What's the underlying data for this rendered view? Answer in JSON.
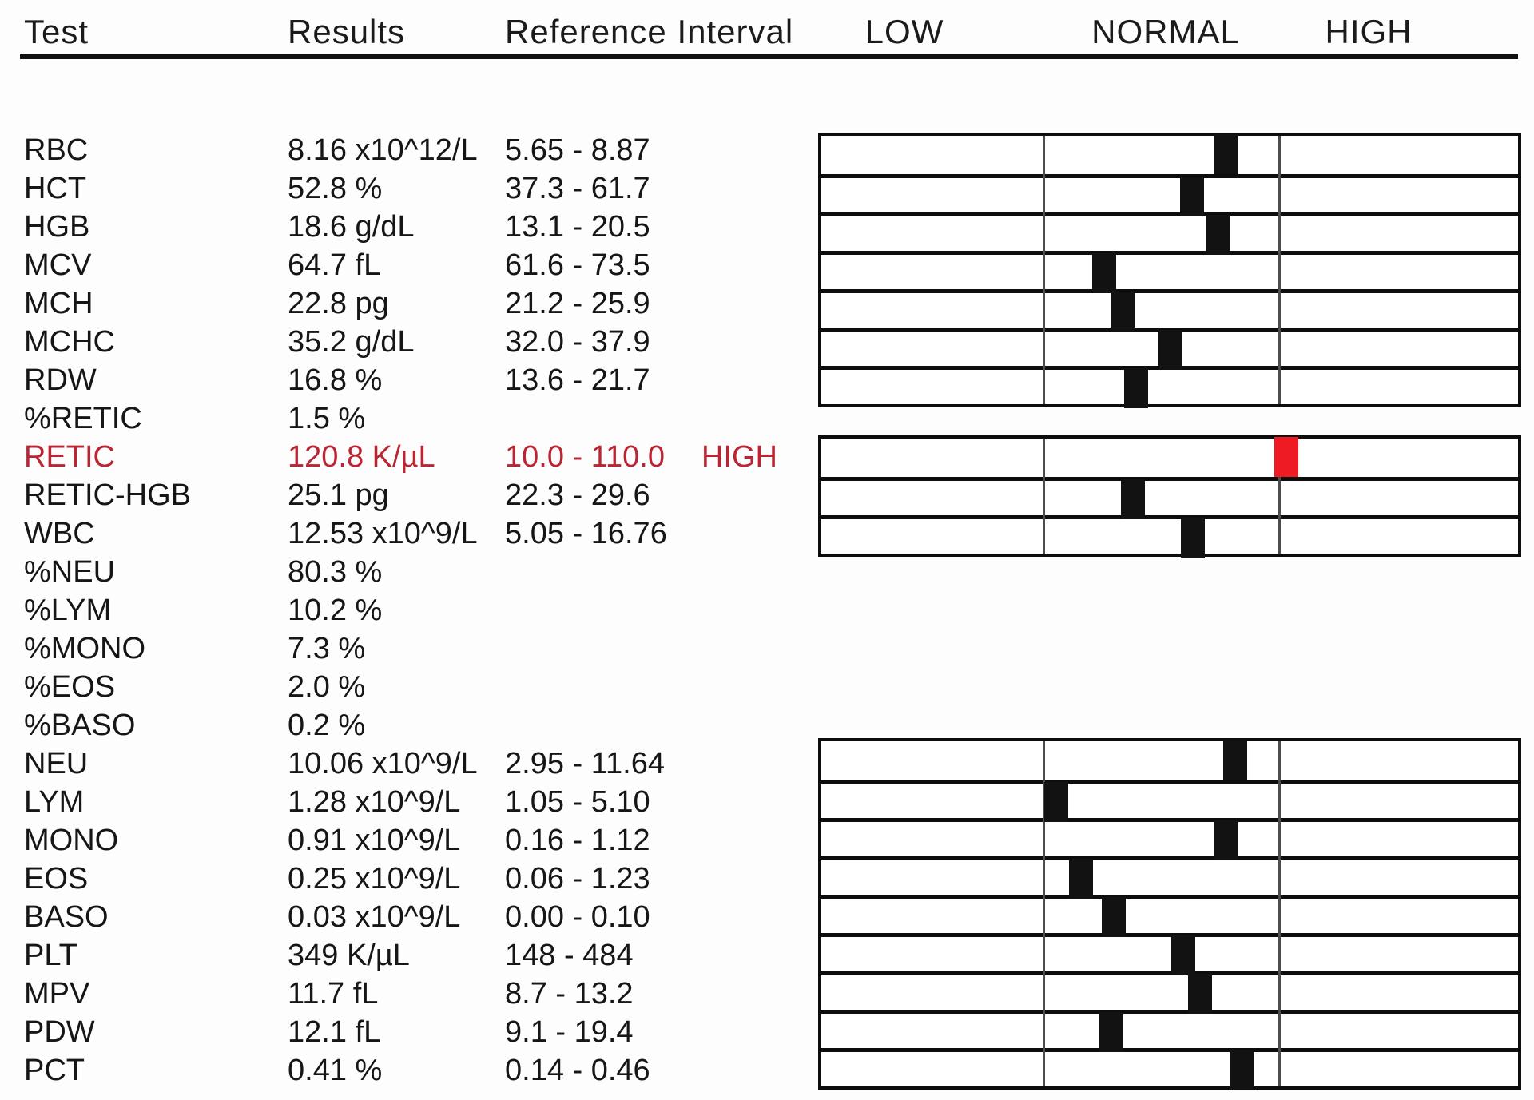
{
  "header": {
    "test": "Test",
    "results": "Results",
    "reference": "Reference Interval",
    "low": "LOW",
    "normal": "NORMAL",
    "high": "HIGH"
  },
  "colors": {
    "text": "#161616",
    "abnormal_text": "#bb2433",
    "marker_normal": "#121212",
    "marker_abnormal": "#ee1b23",
    "box_border": "#0d0d0d",
    "zone_divider": "#4d4d4d"
  },
  "rows": [
    {
      "test": "RBC",
      "result": "8.16 x10^12/L",
      "ref_interval": "5.65 - 8.87",
      "flag": "",
      "abnormal": false,
      "value": 8.16,
      "range": {
        "low": 5.65,
        "high": 8.87
      },
      "group": 1
    },
    {
      "test": "HCT",
      "result": "52.8 %",
      "ref_interval": "37.3 - 61.7",
      "flag": "",
      "abnormal": false,
      "value": 52.8,
      "range": {
        "low": 37.3,
        "high": 61.7
      },
      "group": 1
    },
    {
      "test": "HGB",
      "result": "18.6 g/dL",
      "ref_interval": "13.1 - 20.5",
      "flag": "",
      "abnormal": false,
      "value": 18.6,
      "range": {
        "low": 13.1,
        "high": 20.5
      },
      "group": 1
    },
    {
      "test": "MCV",
      "result": "64.7 fL",
      "ref_interval": "61.6 - 73.5",
      "flag": "",
      "abnormal": false,
      "value": 64.7,
      "range": {
        "low": 61.6,
        "high": 73.5
      },
      "group": 1
    },
    {
      "test": "MCH",
      "result": "22.8 pg",
      "ref_interval": "21.2 - 25.9",
      "flag": "",
      "abnormal": false,
      "value": 22.8,
      "range": {
        "low": 21.2,
        "high": 25.9
      },
      "group": 1
    },
    {
      "test": "MCHC",
      "result": "35.2 g/dL",
      "ref_interval": "32.0 - 37.9",
      "flag": "",
      "abnormal": false,
      "value": 35.2,
      "range": {
        "low": 32.0,
        "high": 37.9
      },
      "group": 1
    },
    {
      "test": "RDW",
      "result": "16.8 %",
      "ref_interval": "13.6 - 21.7",
      "flag": "",
      "abnormal": false,
      "value": 16.8,
      "range": {
        "low": 13.6,
        "high": 21.7
      },
      "group": 1
    },
    {
      "test": "%RETIC",
      "result": "1.5 %",
      "ref_interval": "",
      "flag": "",
      "abnormal": false,
      "value": 1.5,
      "range": null,
      "group": null
    },
    {
      "test": "RETIC",
      "result": "120.8 K/µL",
      "ref_interval": "10.0 - 110.0",
      "flag": "HIGH",
      "abnormal": true,
      "value": 120.8,
      "range": {
        "low": 10.0,
        "high": 110.0
      },
      "group": 2
    },
    {
      "test": "RETIC-HGB",
      "result": "25.1 pg",
      "ref_interval": "22.3 - 29.6",
      "flag": "",
      "abnormal": false,
      "value": 25.1,
      "range": {
        "low": 22.3,
        "high": 29.6
      },
      "group": 2
    },
    {
      "test": "WBC",
      "result": "12.53 x10^9/L",
      "ref_interval": "5.05 - 16.76",
      "flag": "",
      "abnormal": false,
      "value": 12.53,
      "range": {
        "low": 5.05,
        "high": 16.76
      },
      "group": 2
    },
    {
      "test": "%NEU",
      "result": "80.3 %",
      "ref_interval": "",
      "flag": "",
      "abnormal": false,
      "value": 80.3,
      "range": null,
      "group": null
    },
    {
      "test": "%LYM",
      "result": "10.2 %",
      "ref_interval": "",
      "flag": "",
      "abnormal": false,
      "value": 10.2,
      "range": null,
      "group": null
    },
    {
      "test": "%MONO",
      "result": "7.3 %",
      "ref_interval": "",
      "flag": "",
      "abnormal": false,
      "value": 7.3,
      "range": null,
      "group": null
    },
    {
      "test": "%EOS",
      "result": "2.0 %",
      "ref_interval": "",
      "flag": "",
      "abnormal": false,
      "value": 2.0,
      "range": null,
      "group": null
    },
    {
      "test": "%BASO",
      "result": "0.2 %",
      "ref_interval": "",
      "flag": "",
      "abnormal": false,
      "value": 0.2,
      "range": null,
      "group": null
    },
    {
      "test": "NEU",
      "result": "10.06 x10^9/L",
      "ref_interval": "2.95 - 11.64",
      "flag": "",
      "abnormal": false,
      "value": 10.06,
      "range": {
        "low": 2.95,
        "high": 11.64
      },
      "group": 3
    },
    {
      "test": "LYM",
      "result": "1.28 x10^9/L",
      "ref_interval": "1.05 - 5.10",
      "flag": "",
      "abnormal": false,
      "value": 1.28,
      "range": {
        "low": 1.05,
        "high": 5.1
      },
      "group": 3
    },
    {
      "test": "MONO",
      "result": "0.91 x10^9/L",
      "ref_interval": "0.16 - 1.12",
      "flag": "",
      "abnormal": false,
      "value": 0.91,
      "range": {
        "low": 0.16,
        "high": 1.12
      },
      "group": 3
    },
    {
      "test": "EOS",
      "result": "0.25 x10^9/L",
      "ref_interval": "0.06 - 1.23",
      "flag": "",
      "abnormal": false,
      "value": 0.25,
      "range": {
        "low": 0.06,
        "high": 1.23
      },
      "group": 3
    },
    {
      "test": "BASO",
      "result": "0.03 x10^9/L",
      "ref_interval": "0.00 - 0.10",
      "flag": "",
      "abnormal": false,
      "value": 0.03,
      "range": {
        "low": 0.0,
        "high": 0.1
      },
      "group": 3
    },
    {
      "test": "PLT",
      "result": "349 K/µL",
      "ref_interval": "148 - 484",
      "flag": "",
      "abnormal": false,
      "value": 349,
      "range": {
        "low": 148,
        "high": 484
      },
      "group": 3
    },
    {
      "test": "MPV",
      "result": "11.7 fL",
      "ref_interval": "8.7 - 13.2",
      "flag": "",
      "abnormal": false,
      "value": 11.7,
      "range": {
        "low": 8.7,
        "high": 13.2
      },
      "group": 3
    },
    {
      "test": "PDW",
      "result": "12.1 fL",
      "ref_interval": "9.1 - 19.4",
      "flag": "",
      "abnormal": false,
      "value": 12.1,
      "range": {
        "low": 9.1,
        "high": 19.4
      },
      "group": 3
    },
    {
      "test": "PCT",
      "result": "0.41 %",
      "ref_interval": "0.14 - 0.46",
      "flag": "",
      "abnormal": false,
      "value": 0.41,
      "range": {
        "low": 0.14,
        "high": 0.46
      },
      "group": 3
    }
  ]
}
